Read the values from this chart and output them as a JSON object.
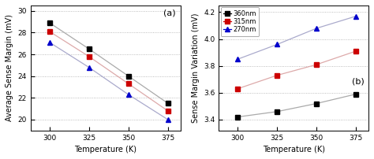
{
  "temperature": [
    300,
    325,
    350,
    375
  ],
  "plot_a": {
    "title": "(a)",
    "ylabel": "Average Sense Margin (mV)",
    "xlabel": "Temperature (K)",
    "ylim": [
      19.0,
      30.5
    ],
    "yticks": [
      20,
      22,
      24,
      26,
      28,
      30
    ],
    "series_order": [
      "360nm",
      "315nm",
      "270nm"
    ],
    "series": {
      "360nm": {
        "line_color": "#aaaaaa",
        "marker_color": "#000000",
        "marker": "s",
        "values": [
          28.9,
          26.5,
          24.0,
          21.5
        ]
      },
      "315nm": {
        "line_color": "#ddaaaa",
        "marker_color": "#cc0000",
        "marker": "s",
        "values": [
          28.1,
          25.8,
          23.3,
          20.8
        ]
      },
      "270nm": {
        "line_color": "#aaaacc",
        "marker_color": "#0000cc",
        "marker": "^",
        "values": [
          27.1,
          24.8,
          22.3,
          20.0
        ]
      }
    }
  },
  "plot_b": {
    "title": "(b)",
    "ylabel": "Sense Margin Variation (mV)",
    "xlabel": "Temperature (K)",
    "ylim": [
      3.32,
      4.25
    ],
    "yticks": [
      3.4,
      3.6,
      3.8,
      4.0,
      4.2
    ],
    "series_order": [
      "360nm",
      "315nm",
      "270nm"
    ],
    "series": {
      "360nm": {
        "line_color": "#aaaaaa",
        "marker_color": "#000000",
        "marker": "s",
        "values": [
          3.42,
          3.46,
          3.52,
          3.59
        ]
      },
      "315nm": {
        "line_color": "#ddaaaa",
        "marker_color": "#cc0000",
        "marker": "s",
        "values": [
          3.63,
          3.73,
          3.81,
          3.91
        ]
      },
      "270nm": {
        "line_color": "#aaaacc",
        "marker_color": "#0000cc",
        "marker": "^",
        "values": [
          3.85,
          3.96,
          4.08,
          4.17
        ]
      }
    }
  },
  "legend_labels": [
    "360nm",
    "315nm",
    "270nm"
  ],
  "xticks": [
    300,
    325,
    350,
    375
  ],
  "xlim": [
    288,
    383
  ]
}
